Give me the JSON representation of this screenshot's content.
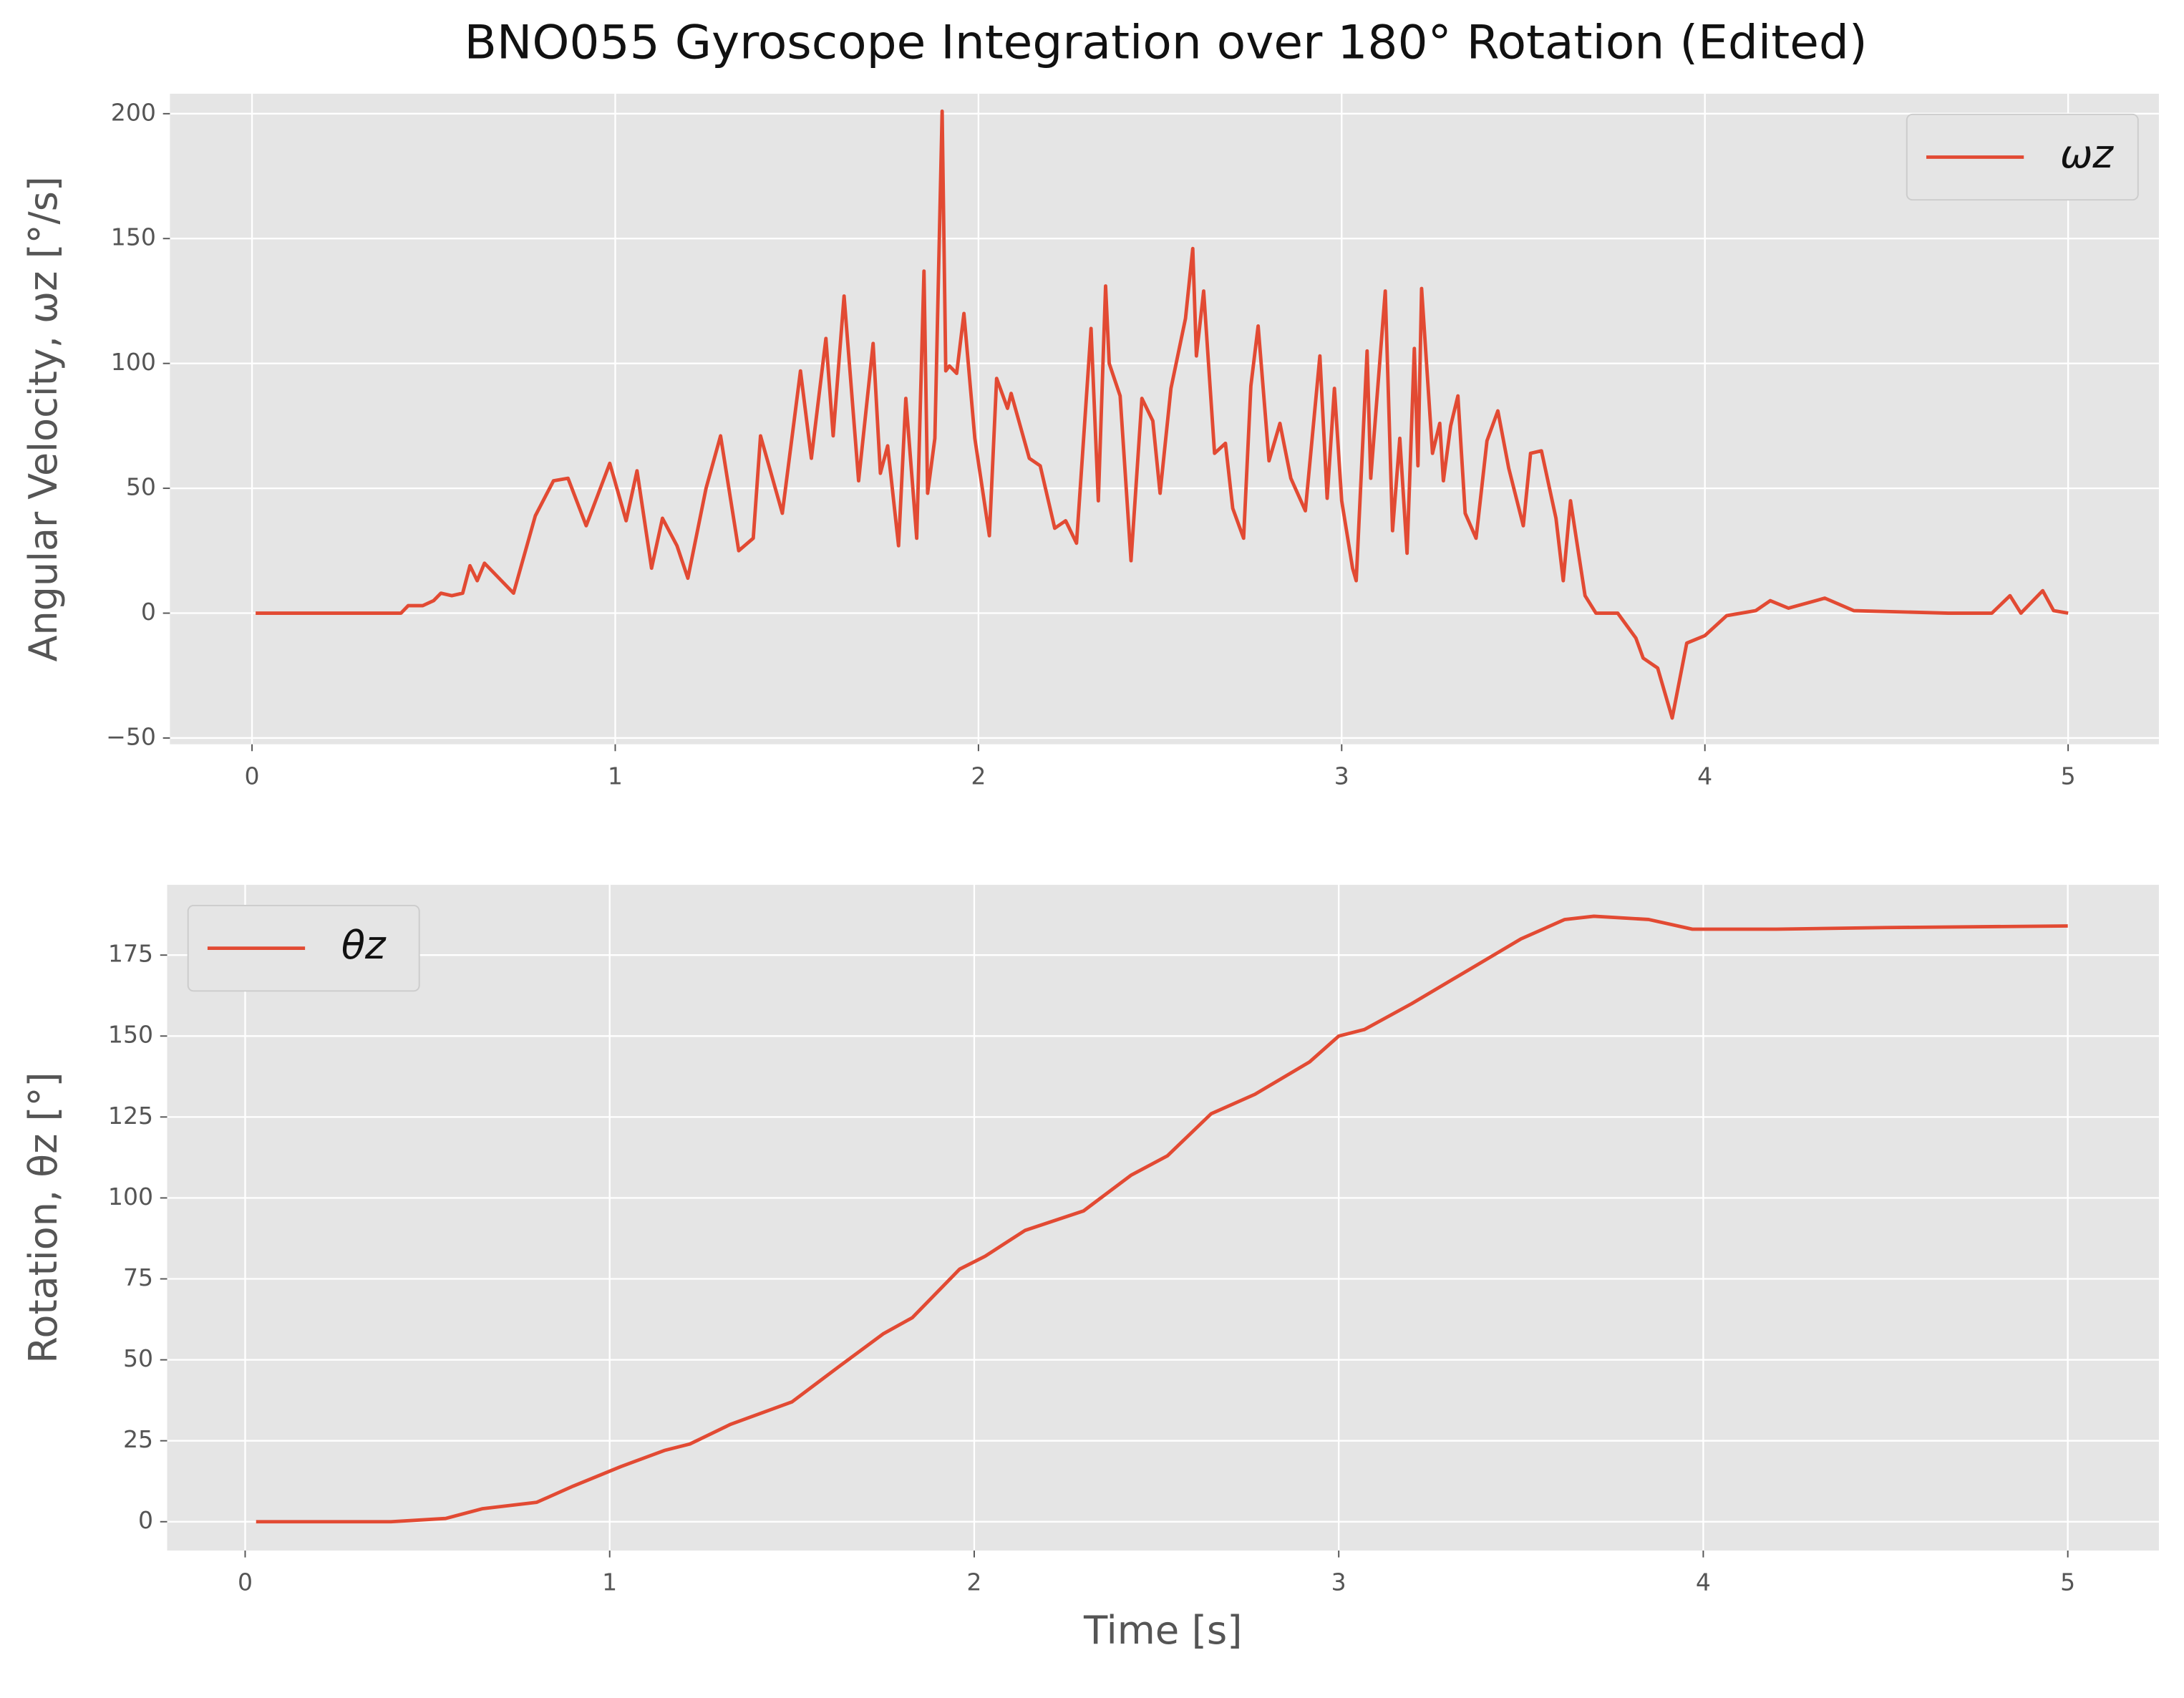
{
  "chart_data": [
    {
      "type": "line",
      "title": "BNO055 Gyroscope Integration over 180° Rotation (Edited)",
      "ylabel": "Angular Velocity, ωz [°/s]",
      "x": [
        0.01,
        0.1,
        0.2,
        0.3,
        0.41,
        0.43,
        0.47,
        0.5,
        0.52,
        0.55,
        0.58,
        0.6,
        0.62,
        0.64,
        0.72,
        0.78,
        0.83,
        0.87,
        0.92,
        0.985,
        1.03,
        1.06,
        1.1,
        1.13,
        1.17,
        1.2,
        1.25,
        1.29,
        1.34,
        1.38,
        1.4,
        1.46,
        1.51,
        1.54,
        1.58,
        1.6,
        1.63,
        1.67,
        1.71,
        1.73,
        1.75,
        1.78,
        1.8,
        1.83,
        1.85,
        1.86,
        1.88,
        1.9,
        1.91,
        1.92,
        1.94,
        1.96,
        1.99,
        2.03,
        2.05,
        2.08,
        2.09,
        2.14,
        2.17,
        2.21,
        2.24,
        2.27,
        2.31,
        2.33,
        2.35,
        2.36,
        2.39,
        2.42,
        2.45,
        2.48,
        2.5,
        2.53,
        2.57,
        2.59,
        2.6,
        2.62,
        2.65,
        2.68,
        2.7,
        2.73,
        2.75,
        2.77,
        2.8,
        2.83,
        2.86,
        2.9,
        2.94,
        2.96,
        2.98,
        3.0,
        3.03,
        3.04,
        3.07,
        3.08,
        3.12,
        3.14,
        3.16,
        3.18,
        3.2,
        3.21,
        3.22,
        3.25,
        3.27,
        3.28,
        3.3,
        3.32,
        3.34,
        3.37,
        3.4,
        3.43,
        3.46,
        3.5,
        3.52,
        3.55,
        3.59,
        3.61,
        3.63,
        3.67,
        3.7,
        3.76,
        3.81,
        3.83,
        3.87,
        3.91,
        3.95,
        4.0,
        4.06,
        4.14,
        4.18,
        4.23,
        4.33,
        4.41,
        4.67,
        4.79,
        4.84,
        4.87,
        4.93,
        4.96,
        5.0
      ],
      "series": [
        {
          "name": "ωz",
          "color": "#E24A33",
          "values": [
            0,
            0,
            0,
            0,
            0,
            3,
            3,
            5,
            8,
            7,
            8,
            19,
            13,
            20,
            8,
            39,
            53,
            54,
            35,
            60,
            37,
            57,
            18,
            38,
            27,
            14,
            50,
            71,
            25,
            30,
            71,
            40,
            97,
            62,
            110,
            71,
            127,
            53,
            108,
            56,
            67,
            27,
            86,
            30,
            137,
            48,
            70,
            201,
            97,
            99,
            96,
            120,
            70,
            31,
            94,
            82,
            88,
            62,
            59,
            34,
            37,
            28,
            114,
            45,
            131,
            100,
            87,
            21,
            86,
            77,
            48,
            90,
            118,
            146,
            103,
            129,
            64,
            68,
            42,
            30,
            91,
            115,
            61,
            76,
            54,
            41,
            103,
            46,
            90,
            45,
            18,
            13,
            105,
            54,
            129,
            33,
            70,
            24,
            106,
            59,
            130,
            64,
            76,
            53,
            75,
            87,
            40,
            30,
            69,
            81,
            58,
            35,
            64,
            65,
            38,
            13,
            45,
            7,
            0,
            0,
            -10,
            -18,
            -22,
            -42,
            -12,
            -9,
            -1,
            1,
            5,
            2,
            6,
            1,
            0,
            0,
            7,
            0,
            9,
            1,
            0
          ]
        }
      ],
      "xlim": [
        -0.226,
        5.25
      ],
      "ylim": [
        -52.5,
        208
      ],
      "xticks": [
        0,
        1,
        2,
        3,
        4,
        5
      ],
      "yticks": [
        {
          "value": -50,
          "label": "−50"
        },
        0,
        50,
        100,
        150,
        200
      ],
      "grid": true,
      "legend": "upper right"
    },
    {
      "type": "line",
      "xlabel": "Time [s]",
      "ylabel": "Rotation, θz [°]",
      "x": [
        0.03,
        0.4,
        0.55,
        0.65,
        0.8,
        0.9,
        1.03,
        1.15,
        1.22,
        1.33,
        1.5,
        1.63,
        1.75,
        1.83,
        1.96,
        2.03,
        2.14,
        2.3,
        2.43,
        2.53,
        2.65,
        2.77,
        2.92,
        3.0,
        3.07,
        3.2,
        3.38,
        3.5,
        3.62,
        3.7,
        3.85,
        3.97,
        4.2,
        4.5,
        5.0
      ],
      "series": [
        {
          "name": "θz",
          "color": "#E24A33",
          "values": [
            0,
            0,
            1,
            4,
            6,
            11,
            17,
            22,
            24,
            30,
            37,
            48,
            58,
            63,
            78,
            82,
            90,
            96,
            107,
            113,
            126,
            132,
            142,
            150,
            152,
            160,
            172,
            180,
            186,
            187,
            186,
            183,
            183,
            183.5,
            184
          ]
        }
      ],
      "xlim": [
        -0.214,
        5.25
      ],
      "ylim": [
        -8.9,
        196.7
      ],
      "xticks": [
        0,
        1,
        2,
        3,
        4,
        5
      ],
      "yticks": [
        0,
        25,
        50,
        75,
        100,
        125,
        150,
        175
      ],
      "grid": true,
      "legend": "upper left"
    }
  ]
}
